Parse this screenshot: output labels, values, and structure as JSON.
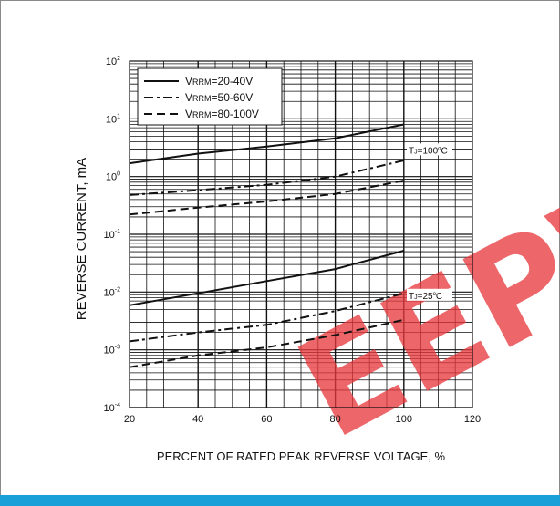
{
  "colors": {
    "line": "#111111",
    "bottom_bar": "#1aa0d8",
    "watermark": "#e8383d"
  },
  "watermark": {
    "text": "EEPW"
  },
  "chart_data": {
    "type": "line",
    "title": "",
    "xlabel": "PERCENT OF RATED PEAK REVERSE VOLTAGE, %",
    "ylabel": "REVERSE CURRENT, mA",
    "xlim": [
      20,
      120
    ],
    "ylim": [
      0.0001,
      100
    ],
    "y_scale": "log",
    "grid": true,
    "legend_position": "top-left",
    "x_ticks": [
      "20",
      "40",
      "60",
      "80",
      "100",
      "120"
    ],
    "y_ticks": [
      {
        "base": "10",
        "exp": "2"
      },
      {
        "base": "10",
        "exp": "1"
      },
      {
        "base": "10",
        "exp": "0"
      },
      {
        "base": "10",
        "exp": "-1"
      },
      {
        "base": "10",
        "exp": "-2"
      },
      {
        "base": "10",
        "exp": "-3"
      },
      {
        "base": "10",
        "exp": "-4"
      }
    ],
    "legend": [
      {
        "pre": "V",
        "sub": "RRM",
        "post": "=20-40V",
        "dash": "solid"
      },
      {
        "pre": "V",
        "sub": "RRM",
        "post": "=50-60V",
        "dash": "dashdot"
      },
      {
        "pre": "V",
        "sub": "RRM",
        "post": "=80-100V",
        "dash": "dashed"
      }
    ],
    "annotations": [
      {
        "pre": "T",
        "sub": "J",
        "mid": "=100",
        "sup": "o",
        "post": "C"
      },
      {
        "pre": "T",
        "sub": "J",
        "mid": "=25",
        "sup": "o",
        "post": "C"
      }
    ],
    "series": [
      {
        "group": "TJ=100°C",
        "dash": "solid",
        "x": [
          20,
          40,
          60,
          80,
          100
        ],
        "y": [
          1.7,
          2.5,
          3.3,
          4.6,
          8.0
        ]
      },
      {
        "group": "TJ=100°C",
        "dash": "dashdot",
        "x": [
          20,
          40,
          60,
          80,
          100
        ],
        "y": [
          0.48,
          0.58,
          0.72,
          1.0,
          1.9
        ]
      },
      {
        "group": "TJ=100°C",
        "dash": "dashed",
        "x": [
          20,
          40,
          60,
          80,
          100
        ],
        "y": [
          0.22,
          0.29,
          0.37,
          0.5,
          0.85
        ]
      },
      {
        "group": "TJ=25°C",
        "dash": "solid",
        "x": [
          20,
          40,
          60,
          80,
          100
        ],
        "y": [
          0.0059,
          0.0095,
          0.0155,
          0.025,
          0.052
        ]
      },
      {
        "group": "TJ=25°C",
        "dash": "dashdot",
        "x": [
          20,
          40,
          60,
          80,
          100
        ],
        "y": [
          0.0014,
          0.002,
          0.0027,
          0.0047,
          0.0095
        ]
      },
      {
        "group": "TJ=25°C",
        "dash": "dashed",
        "x": [
          20,
          40,
          60,
          80,
          100
        ],
        "y": [
          0.0005,
          0.0008,
          0.0011,
          0.0018,
          0.0033
        ]
      }
    ]
  }
}
